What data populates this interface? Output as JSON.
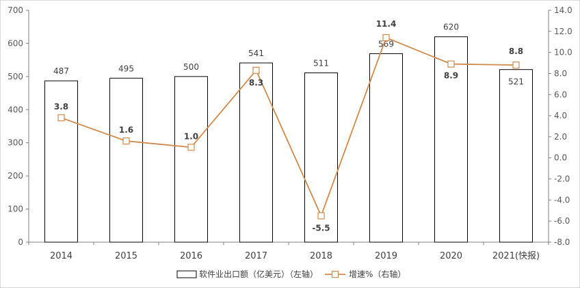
{
  "chart_data": {
    "type": "bar+line",
    "categories": [
      "2014",
      "2015",
      "2016",
      "2017",
      "2018",
      "2019",
      "2020",
      "2021(快报)"
    ],
    "series": [
      {
        "name": "软件业出口额（亿美元）（左轴）",
        "type": "bar",
        "axis": "left",
        "values": [
          487,
          495,
          500,
          541,
          511,
          569,
          620,
          521
        ],
        "labels": [
          "487",
          "495",
          "500",
          "541",
          "511",
          "569",
          "620",
          "521"
        ]
      },
      {
        "name": "增速%（右轴）",
        "type": "line",
        "axis": "right",
        "values": [
          3.8,
          1.6,
          1.0,
          8.3,
          -5.5,
          11.4,
          8.9,
          8.8
        ],
        "labels": [
          "3.8",
          "1.6",
          "1.0",
          "8.3",
          "-5.5",
          "11.4",
          "8.9",
          "8.8"
        ]
      }
    ],
    "left_axis": {
      "min": 0,
      "max": 700,
      "step": 100,
      "ticks": [
        "0",
        "100",
        "200",
        "300",
        "400",
        "500",
        "600",
        "700"
      ]
    },
    "right_axis": {
      "min": -8,
      "max": 14,
      "step": 2,
      "ticks": [
        "-8.0",
        "-6.0",
        "-4.0",
        "-2.0",
        "0.0",
        "2.0",
        "4.0",
        "6.0",
        "8.0",
        "10.0",
        "12.0",
        "14.0"
      ]
    },
    "legend_position": "bottom",
    "grid": false
  },
  "colors": {
    "bar_fill": "#ffffff",
    "bar_stroke": "#000000",
    "line": "#d08a4e",
    "marker_fill": "#ffffff",
    "axis": "#7f7f7f"
  },
  "legend": {
    "bar_label": "软件业出口额（亿美元）（左轴）",
    "line_label": "增速%（右轴）"
  }
}
